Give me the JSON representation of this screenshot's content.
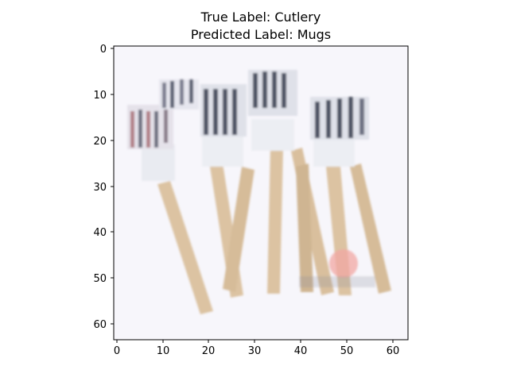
{
  "figure": {
    "title_line1": "True Label: Cutlery",
    "title_line2": "Predicted Label: Mugs"
  },
  "axes": {
    "x_ticks": [
      "0",
      "10",
      "20",
      "30",
      "40",
      "50",
      "60"
    ],
    "y_ticks": [
      "0",
      "10",
      "20",
      "30",
      "40",
      "50",
      "60"
    ],
    "x_tick_values": [
      0,
      10,
      20,
      30,
      40,
      50,
      60
    ],
    "y_tick_values": [
      0,
      10,
      20,
      30,
      40,
      50,
      60
    ],
    "xlim": [
      -0.5,
      63.5
    ],
    "ylim": [
      63.5,
      -0.5
    ],
    "grid": false
  },
  "image": {
    "content": "pixelated photo of several forks with striped metal tines and light wooden handles on a white background",
    "resolution": [
      64,
      64
    ],
    "colors": {
      "background": "#f7f6fb",
      "handle": "#dcc3a2",
      "handle_shadow": "#cfb592",
      "tine_dark": "#4d5263",
      "tine_light": "#d9dde6",
      "tine_reddish": "#b07f86",
      "watermark": "#f2a7a3"
    }
  }
}
